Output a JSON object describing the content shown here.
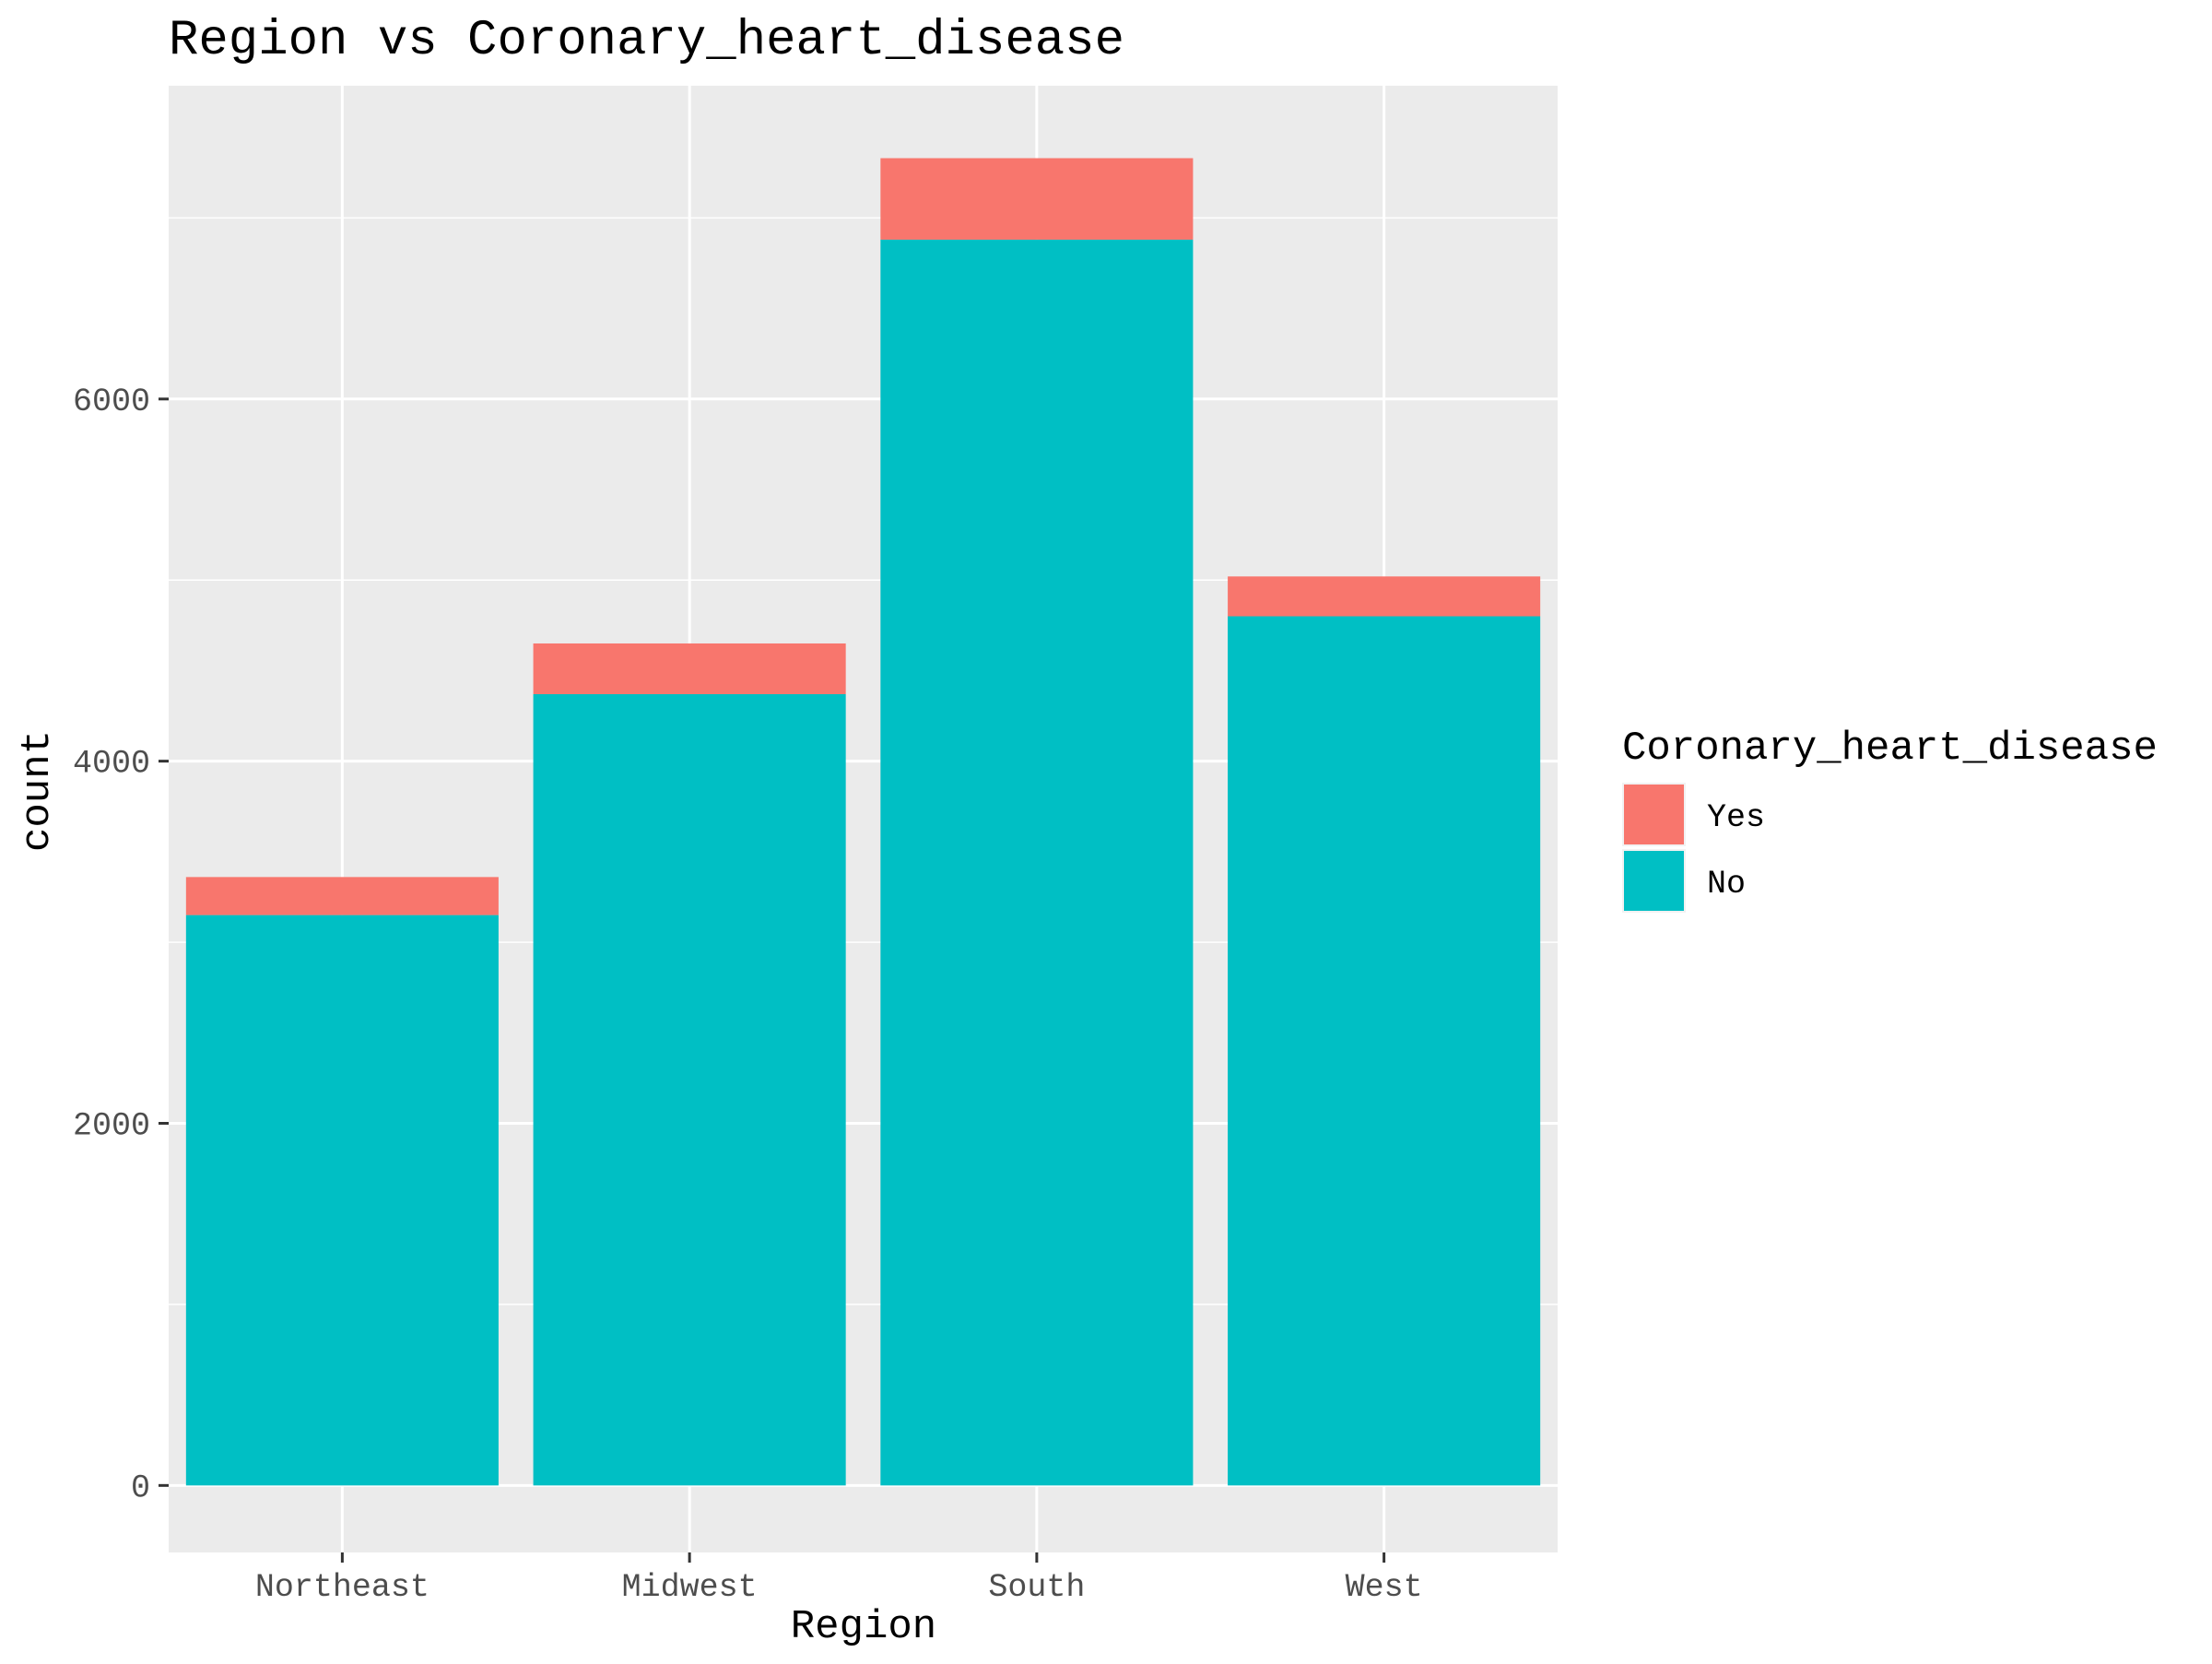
{
  "chart_data": {
    "type": "bar",
    "stacked": true,
    "title": "Region vs Coronary_heart_disease",
    "xlabel": "Region",
    "ylabel": "count",
    "categories": [
      "Northeast",
      "Midwest",
      "South",
      "West"
    ],
    "series": [
      {
        "name": "No",
        "color": "#00BFC4",
        "values": [
          3150,
          4370,
          6880,
          4800
        ]
      },
      {
        "name": "Yes",
        "color": "#F8766D",
        "values": [
          210,
          280,
          450,
          220
        ]
      }
    ],
    "ylim": [
      -370,
      7730
    ],
    "yticks": [
      0,
      2000,
      4000,
      6000
    ],
    "ytick_labels": [
      "0",
      "2000",
      "4000",
      "6000"
    ],
    "grid": true,
    "panel_background": "#EBEBEB",
    "gridline_color": "#FFFFFF",
    "legend": {
      "title": "Coronary_heart_disease",
      "position": "right",
      "items": [
        {
          "label": "Yes",
          "color": "#F8766D"
        },
        {
          "label": "No",
          "color": "#00BFC4"
        }
      ]
    }
  }
}
